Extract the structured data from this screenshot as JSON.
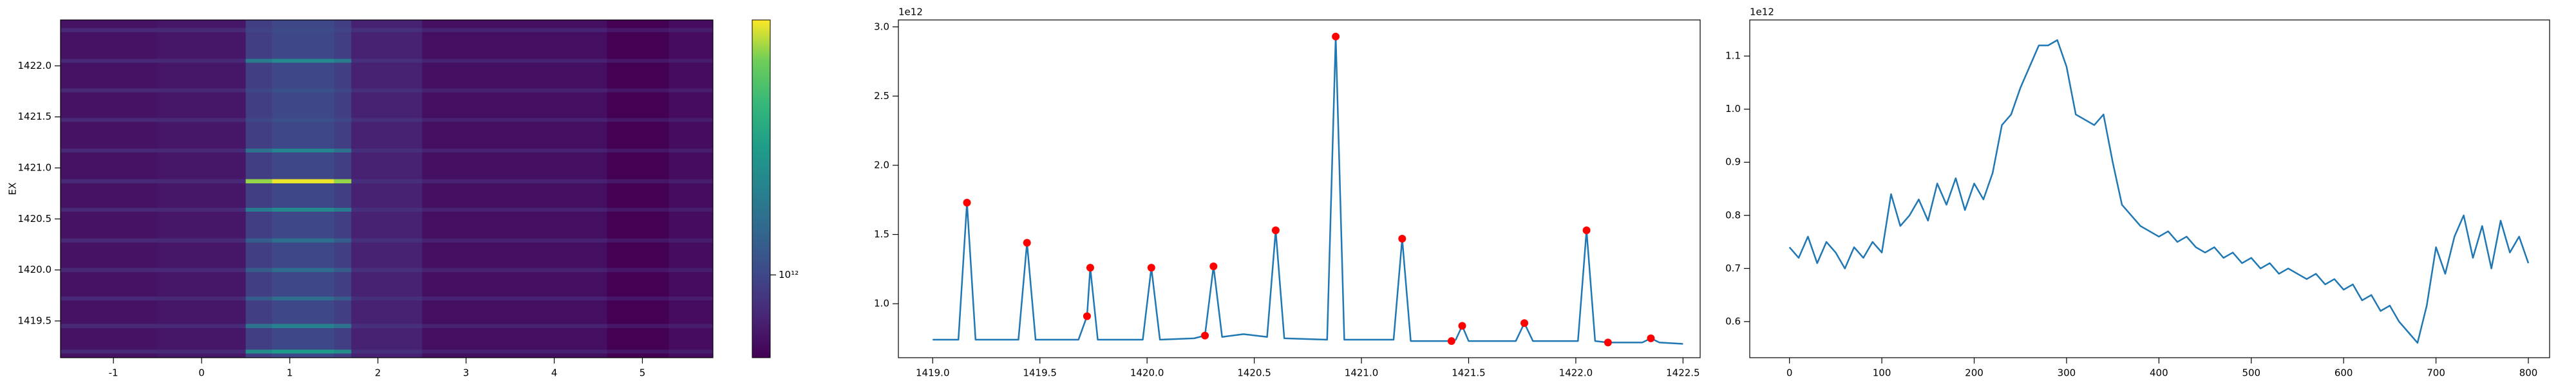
{
  "chart_data": [
    {
      "type": "heatmap",
      "ylabel": "EX",
      "xbins": [
        -1.6,
        -0.5,
        0.5,
        0.8,
        1.5,
        1.7,
        2.5,
        4.6,
        5.3,
        5.8
      ],
      "ybins": [
        1419.14,
        1419.18,
        1419.22,
        1419.43,
        1419.47,
        1419.7,
        1419.74,
        1419.98,
        1420.02,
        1420.27,
        1420.31,
        1420.57,
        1420.61,
        1420.85,
        1420.89,
        1421.15,
        1421.19,
        1421.45,
        1421.49,
        1421.74,
        1421.78,
        1422.03,
        1422.07,
        1422.33,
        1422.37,
        1422.45
      ],
      "z": [
        [
          760000000000.0,
          780000000000.0,
          950000000000.0,
          1000000000000.0,
          950000000000.0,
          820000000000.0,
          750000000000.0,
          700000000000.0,
          740000000000.0
        ],
        [
          850000000000.0,
          850000000000.0,
          1560000000000.0,
          1730000000000.0,
          1560000000000.0,
          880000000000.0,
          820000000000.0,
          780000000000.0,
          800000000000.0
        ],
        [
          760000000000.0,
          780000000000.0,
          950000000000.0,
          1000000000000.0,
          950000000000.0,
          820000000000.0,
          750000000000.0,
          700000000000.0,
          740000000000.0
        ],
        [
          850000000000.0,
          850000000000.0,
          1300000000000.0,
          1440000000000.0,
          1300000000000.0,
          880000000000.0,
          820000000000.0,
          780000000000.0,
          800000000000.0
        ],
        [
          760000000000.0,
          780000000000.0,
          950000000000.0,
          1000000000000.0,
          950000000000.0,
          820000000000.0,
          750000000000.0,
          700000000000.0,
          740000000000.0
        ],
        [
          850000000000.0,
          850000000000.0,
          1130000000000.0,
          1260000000000.0,
          1130000000000.0,
          880000000000.0,
          820000000000.0,
          780000000000.0,
          800000000000.0
        ],
        [
          760000000000.0,
          780000000000.0,
          950000000000.0,
          1000000000000.0,
          950000000000.0,
          820000000000.0,
          750000000000.0,
          700000000000.0,
          740000000000.0
        ],
        [
          850000000000.0,
          850000000000.0,
          1130000000000.0,
          1260000000000.0,
          1130000000000.0,
          880000000000.0,
          820000000000.0,
          780000000000.0,
          800000000000.0
        ],
        [
          760000000000.0,
          780000000000.0,
          950000000000.0,
          1000000000000.0,
          950000000000.0,
          820000000000.0,
          750000000000.0,
          700000000000.0,
          740000000000.0
        ],
        [
          850000000000.0,
          850000000000.0,
          1140000000000.0,
          1270000000000.0,
          1140000000000.0,
          880000000000.0,
          820000000000.0,
          780000000000.0,
          800000000000.0
        ],
        [
          760000000000.0,
          780000000000.0,
          950000000000.0,
          1000000000000.0,
          950000000000.0,
          820000000000.0,
          750000000000.0,
          700000000000.0,
          740000000000.0
        ],
        [
          850000000000.0,
          850000000000.0,
          1380000000000.0,
          1530000000000.0,
          1380000000000.0,
          880000000000.0,
          820000000000.0,
          780000000000.0,
          800000000000.0
        ],
        [
          760000000000.0,
          780000000000.0,
          950000000000.0,
          1000000000000.0,
          950000000000.0,
          820000000000.0,
          750000000000.0,
          700000000000.0,
          740000000000.0
        ],
        [
          850000000000.0,
          850000000000.0,
          2640000000000.0,
          2930000000000.0,
          2640000000000.0,
          880000000000.0,
          820000000000.0,
          780000000000.0,
          800000000000.0
        ],
        [
          760000000000.0,
          780000000000.0,
          950000000000.0,
          1000000000000.0,
          950000000000.0,
          820000000000.0,
          750000000000.0,
          700000000000.0,
          740000000000.0
        ],
        [
          850000000000.0,
          850000000000.0,
          1320000000000.0,
          1470000000000.0,
          1320000000000.0,
          880000000000.0,
          820000000000.0,
          780000000000.0,
          800000000000.0
        ],
        [
          760000000000.0,
          780000000000.0,
          950000000000.0,
          1000000000000.0,
          950000000000.0,
          820000000000.0,
          750000000000.0,
          700000000000.0,
          740000000000.0
        ],
        [
          850000000000.0,
          850000000000.0,
          1000000000000.0,
          1050000000000.0,
          1000000000000.0,
          880000000000.0,
          820000000000.0,
          780000000000.0,
          800000000000.0
        ],
        [
          760000000000.0,
          780000000000.0,
          950000000000.0,
          1000000000000.0,
          950000000000.0,
          820000000000.0,
          750000000000.0,
          700000000000.0,
          740000000000.0
        ],
        [
          850000000000.0,
          850000000000.0,
          1000000000000.0,
          1060000000000.0,
          1000000000000.0,
          880000000000.0,
          820000000000.0,
          780000000000.0,
          800000000000.0
        ],
        [
          760000000000.0,
          780000000000.0,
          950000000000.0,
          1000000000000.0,
          950000000000.0,
          820000000000.0,
          750000000000.0,
          700000000000.0,
          740000000000.0
        ],
        [
          850000000000.0,
          850000000000.0,
          1380000000000.0,
          1530000000000.0,
          1380000000000.0,
          880000000000.0,
          820000000000.0,
          780000000000.0,
          800000000000.0
        ],
        [
          760000000000.0,
          780000000000.0,
          950000000000.0,
          1000000000000.0,
          950000000000.0,
          820000000000.0,
          750000000000.0,
          700000000000.0,
          740000000000.0
        ],
        [
          850000000000.0,
          850000000000.0,
          980000000000.0,
          1020000000000.0,
          980000000000.0,
          880000000000.0,
          820000000000.0,
          780000000000.0,
          800000000000.0
        ],
        [
          760000000000.0,
          780000000000.0,
          950000000000.0,
          1000000000000.0,
          950000000000.0,
          820000000000.0,
          750000000000.0,
          700000000000.0,
          740000000000.0
        ]
      ],
      "zscale": "log",
      "zlim": [
        700000000000.0,
        3000000000000.0
      ],
      "zticks": [
        {
          "value": 1000000000000.0,
          "label": "10¹²"
        }
      ],
      "xlim": [
        -1.6,
        5.8
      ],
      "xticks": [
        -1,
        0,
        1,
        2,
        3,
        4,
        5
      ],
      "ylim": [
        1419.14,
        1422.45
      ],
      "yticks": [
        1419.5,
        {
          "value": 1420.0,
          "label": "1420.0"
        },
        1420.5,
        {
          "value": 1421.0,
          "label": "1421.0"
        },
        1421.5,
        {
          "value": 1422.0,
          "label": "1422.0"
        }
      ]
    },
    {
      "type": "line",
      "y_offset_label": "1e12",
      "xlim": [
        1418.84,
        1422.58
      ],
      "xticks": [
        {
          "value": 1419.0,
          "label": "1419.0"
        },
        1419.5,
        {
          "value": 1420.0,
          "label": "1420.0"
        },
        1420.5,
        {
          "value": 1421.0,
          "label": "1421.0"
        },
        1421.5,
        {
          "value": 1422.0,
          "label": "1422.0"
        },
        1422.5
      ],
      "ylim": [
        610000000000.0,
        3050000000000.0
      ],
      "yticks": [
        {
          "value": 1000000000000.0,
          "label": "1.0"
        },
        {
          "value": 1500000000000.0,
          "label": "1.5"
        },
        {
          "value": 2000000000000.0,
          "label": "2.0"
        },
        {
          "value": 2500000000000.0,
          "label": "2.5"
        },
        {
          "value": 3000000000000.0,
          "label": "3.0"
        }
      ],
      "series": [
        {
          "color": "#1f77b4",
          "style": "line",
          "x": [
            1419.0,
            1419.12,
            1419.16,
            1419.2,
            1419.4,
            1419.44,
            1419.48,
            1419.68,
            1419.72,
            1419.735,
            1419.77,
            1419.98,
            1420.02,
            1420.06,
            1420.22,
            1420.27,
            1420.31,
            1420.35,
            1420.45,
            1420.56,
            1420.6,
            1420.64,
            1420.84,
            1420.88,
            1420.92,
            1421.15,
            1421.19,
            1421.23,
            1421.42,
            1421.44,
            1421.47,
            1421.5,
            1421.72,
            1421.76,
            1421.8,
            1422.01,
            1422.05,
            1422.09,
            1422.15,
            1422.31,
            1422.35,
            1422.39,
            1422.5
          ],
          "values": [
            740000000000.0,
            740000000000.0,
            1730000000000.0,
            740000000000.0,
            740000000000.0,
            1440000000000.0,
            740000000000.0,
            740000000000.0,
            910000000000.0,
            1260000000000.0,
            740000000000.0,
            740000000000.0,
            1260000000000.0,
            740000000000.0,
            750000000000.0,
            770000000000.0,
            1270000000000.0,
            760000000000.0,
            780000000000.0,
            760000000000.0,
            1530000000000.0,
            750000000000.0,
            740000000000.0,
            2930000000000.0,
            740000000000.0,
            740000000000.0,
            1470000000000.0,
            730000000000.0,
            730000000000.0,
            740000000000.0,
            840000000000.0,
            730000000000.0,
            730000000000.0,
            860000000000.0,
            730000000000.0,
            730000000000.0,
            1530000000000.0,
            730000000000.0,
            720000000000.0,
            720000000000.0,
            750000000000.0,
            720000000000.0,
            710000000000.0
          ]
        },
        {
          "color": "#ff0000",
          "style": "markers",
          "x": [
            1419.16,
            1419.44,
            1419.735,
            1419.72,
            1420.02,
            1420.27,
            1420.31,
            1420.6,
            1420.88,
            1421.19,
            1421.42,
            1421.47,
            1421.76,
            1422.05,
            1422.15,
            1422.35
          ],
          "values": [
            1730000000000.0,
            1440000000000.0,
            1260000000000.0,
            910000000000.0,
            1260000000000.0,
            770000000000.0,
            1270000000000.0,
            1530000000000.0,
            2930000000000.0,
            1470000000000.0,
            730000000000.0,
            840000000000.0,
            860000000000.0,
            1530000000000.0,
            720000000000.0,
            750000000000.0
          ]
        }
      ]
    },
    {
      "type": "line",
      "y_offset_label": "1e12",
      "xlim": [
        -43,
        823
      ],
      "xticks": [
        0,
        100,
        200,
        300,
        400,
        500,
        600,
        700,
        800
      ],
      "ylim": [
        532000000000.0,
        1168000000000.0
      ],
      "yticks": [
        {
          "value": 600000000000.0,
          "label": "0.6"
        },
        {
          "value": 700000000000.0,
          "label": "0.7"
        },
        {
          "value": 800000000000.0,
          "label": "0.8"
        },
        {
          "value": 900000000000.0,
          "label": "0.9"
        },
        {
          "value": 1000000000000.0,
          "label": "1.0"
        },
        {
          "value": 1100000000000.0,
          "label": "1.1"
        }
      ],
      "series": [
        {
          "color": "#1f77b4",
          "style": "line",
          "x": [
            0,
            10,
            20,
            30,
            40,
            50,
            60,
            70,
            80,
            90,
            100,
            110,
            120,
            130,
            140,
            150,
            160,
            170,
            180,
            190,
            200,
            210,
            220,
            230,
            240,
            250,
            260,
            270,
            280,
            290,
            300,
            310,
            320,
            330,
            340,
            350,
            360,
            370,
            380,
            390,
            400,
            410,
            420,
            430,
            440,
            450,
            460,
            470,
            480,
            490,
            500,
            510,
            520,
            530,
            540,
            550,
            560,
            570,
            580,
            590,
            600,
            610,
            620,
            630,
            640,
            650,
            660,
            670,
            680,
            690,
            700,
            710,
            720,
            730,
            740,
            750,
            760,
            770,
            780,
            790,
            800
          ],
          "values": [
            740000000000.0,
            720000000000.0,
            760000000000.0,
            710000000000.0,
            750000000000.0,
            730000000000.0,
            700000000000.0,
            740000000000.0,
            720000000000.0,
            750000000000.0,
            730000000000.0,
            840000000000.0,
            780000000000.0,
            800000000000.0,
            830000000000.0,
            790000000000.0,
            860000000000.0,
            820000000000.0,
            870000000000.0,
            810000000000.0,
            860000000000.0,
            830000000000.0,
            880000000000.0,
            970000000000.0,
            990000000000.0,
            1040000000000.0,
            1080000000000.0,
            1120000000000.0,
            1120000000000.0,
            1130000000000.0,
            1080000000000.0,
            990000000000.0,
            980000000000.0,
            970000000000.0,
            990000000000.0,
            900000000000.0,
            820000000000.0,
            800000000000.0,
            780000000000.0,
            770000000000.0,
            760000000000.0,
            770000000000.0,
            750000000000.0,
            760000000000.0,
            740000000000.0,
            730000000000.0,
            740000000000.0,
            720000000000.0,
            730000000000.0,
            710000000000.0,
            720000000000.0,
            700000000000.0,
            710000000000.0,
            690000000000.0,
            700000000000.0,
            690000000000.0,
            680000000000.0,
            690000000000.0,
            670000000000.0,
            680000000000.0,
            660000000000.0,
            670000000000.0,
            640000000000.0,
            650000000000.0,
            620000000000.0,
            630000000000.0,
            600000000000.0,
            580000000000.0,
            560000000000.0,
            630000000000.0,
            740000000000.0,
            690000000000.0,
            760000000000.0,
            800000000000.0,
            720000000000.0,
            780000000000.0,
            700000000000.0,
            790000000000.0,
            730000000000.0,
            760000000000.0,
            710000000000.0
          ]
        }
      ]
    }
  ]
}
